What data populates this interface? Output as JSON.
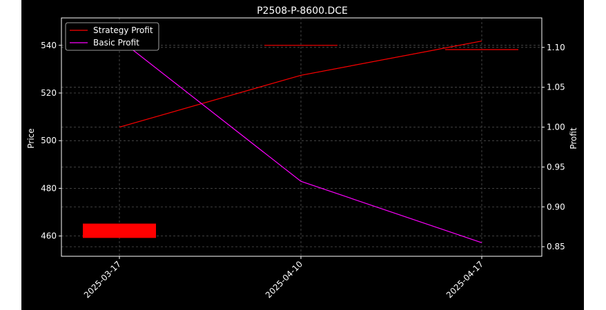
{
  "chart_data": {
    "type": "line",
    "title": "P2508-P-8600.DCE",
    "xlabel": "",
    "x_ticks": [
      "2025-03-17",
      "2025-04-10",
      "2025-04-17"
    ],
    "y_left": {
      "label": "Price",
      "ylim": [
        451.5,
        551.5
      ],
      "ticks": [
        460,
        480,
        500,
        520,
        540
      ]
    },
    "y_right": {
      "label": "Profit",
      "ylim": [
        0.838,
        1.137
      ],
      "ticks": [
        0.85,
        0.9,
        0.95,
        1.0,
        1.05,
        1.1
      ]
    },
    "grid": true,
    "legend_position": "top-left",
    "price_marks": [
      {
        "x": "2025-03-17",
        "low": 459.2,
        "high": 465.2,
        "color": "#ff0000"
      },
      {
        "x": "2025-04-10",
        "low": 540,
        "high": 540,
        "color": "#ff0000"
      },
      {
        "x": "2025-04-17",
        "low": 538.2,
        "high": 538.2,
        "color": "#ff0000"
      }
    ],
    "series": [
      {
        "name": "Strategy Profit",
        "axis": "right",
        "color": "#ff0000",
        "values": [
          1.0,
          1.065,
          1.108
        ]
      },
      {
        "name": "Basic Profit",
        "axis": "right",
        "color": "#ff00ff",
        "values": [
          1.11,
          0.932,
          0.855
        ]
      }
    ]
  }
}
